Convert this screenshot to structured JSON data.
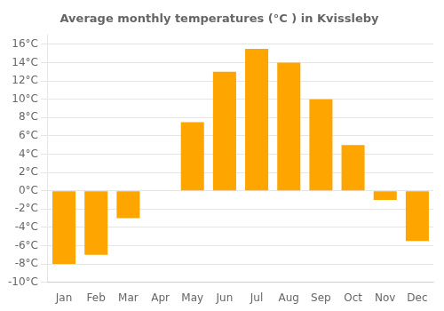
{
  "chart_data": {
    "type": "bar",
    "title": "Average monthly temperatures (°C ) in Kvissleby",
    "categories": [
      "Jan",
      "Feb",
      "Mar",
      "Apr",
      "May",
      "Jun",
      "Jul",
      "Aug",
      "Sep",
      "Oct",
      "Nov",
      "Dec"
    ],
    "values": [
      -8,
      -7,
      -3,
      0,
      7.5,
      13,
      15.5,
      14,
      10,
      5,
      -1,
      -5.5
    ],
    "color": "#FFA500",
    "ylim": [
      -10,
      17
    ],
    "yticks": [
      {
        "value": -10,
        "label": "-10°C"
      },
      {
        "value": -8,
        "label": "-8°C"
      },
      {
        "value": -6,
        "label": "-6°C"
      },
      {
        "value": -4,
        "label": "-4°C"
      },
      {
        "value": -2,
        "label": "-2°C"
      },
      {
        "value": 0,
        "label": "0°C"
      },
      {
        "value": 2,
        "label": "2°C"
      },
      {
        "value": 4,
        "label": "4°C"
      },
      {
        "value": 6,
        "label": "6°C"
      },
      {
        "value": 8,
        "label": "8°C"
      },
      {
        "value": 10,
        "label": "10°C"
      },
      {
        "value": 12,
        "label": "12°C"
      },
      {
        "value": 14,
        "label": "14°C"
      },
      {
        "value": 16,
        "label": "16°C"
      }
    ],
    "grid": true
  }
}
